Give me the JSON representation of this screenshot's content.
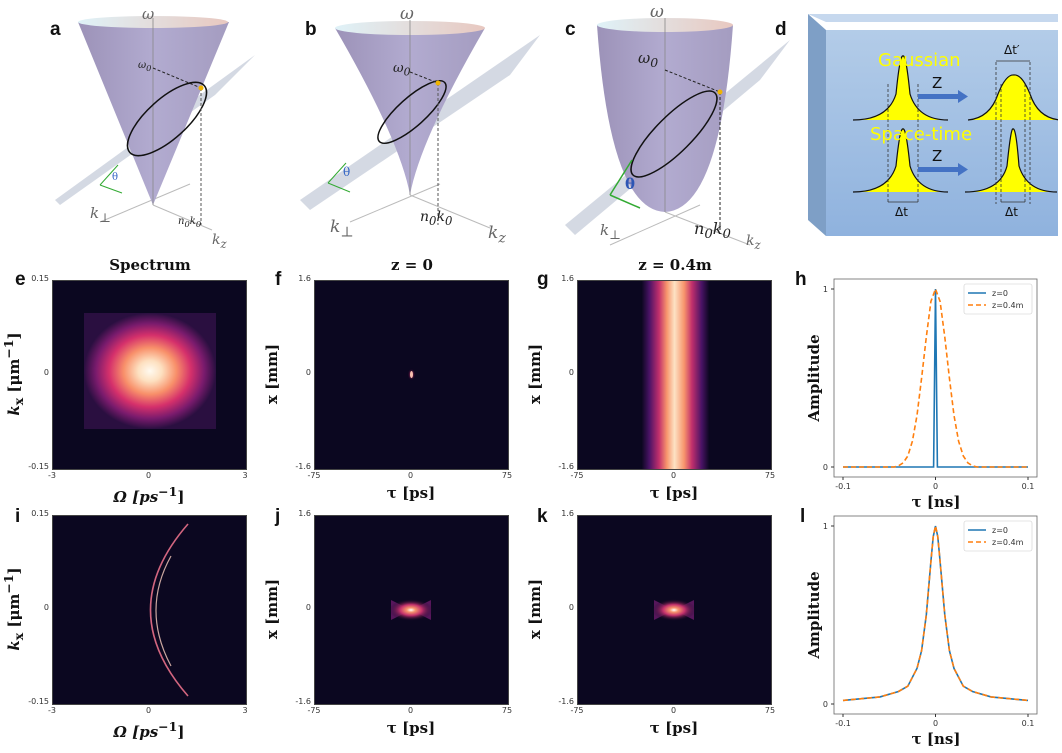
{
  "panel_labels": [
    "a",
    "b",
    "c",
    "d",
    "e",
    "f",
    "g",
    "h",
    "i",
    "j",
    "k",
    "l"
  ],
  "cones": {
    "omega": "ω",
    "omega0": "ω",
    "omega0_sub": "0",
    "theta": "θ",
    "k_perp": "k",
    "k_perp_sub": "⊥",
    "n0k0": "n",
    "n0k0_sub": "0",
    "k0": "k",
    "k0_sub": "0",
    "kz": "k",
    "kz_sub": "z"
  },
  "diagram_d": {
    "gaussian": "Gaussian",
    "space_time": "Space-time",
    "z1": "Z",
    "z2": "Z",
    "dt_prime": "Δt′",
    "dt_left": "Δt",
    "dt_right": "Δt",
    "colors": {
      "box": "#9dbde2",
      "pulse": "#ffff00",
      "arrow": "#4472c4",
      "text": "#ffff00"
    }
  },
  "titles": {
    "e": "Spectrum",
    "f": "z = 0",
    "g": "z = 0.4m"
  },
  "axes": {
    "kx": "k",
    "kx_sub": "x",
    "kx_unit": " [μm",
    "kx_sup": "−1",
    "kx_close": "]",
    "omega": "Ω [ps",
    "omega_sup": "−1",
    "omega_close": "]",
    "x_mm": "x [mm]",
    "tau_ps": "τ [ps]",
    "tau_ns": "τ [ns]",
    "amplitude": "Amplitude",
    "kx_ticks": [
      "0.15",
      "0",
      "-0.15"
    ],
    "omega_ticks": [
      "-3",
      "0",
      "3"
    ],
    "x_ticks": [
      "1.6",
      "0",
      "-1.6"
    ],
    "tau_ps_ticks": [
      "-75",
      "0",
      "75"
    ]
  },
  "heatmap_colormap": [
    "#0b0720",
    "#5a1a6e",
    "#c2306c",
    "#f47a5c",
    "#fde2c4",
    "#ffffff"
  ],
  "chart_data": [
    {
      "panel": "h",
      "type": "line",
      "xlabel": "τ [ns]",
      "ylabel": "Amplitude",
      "xlim": [
        -0.1,
        0.1
      ],
      "ylim": [
        0,
        1
      ],
      "xticks": [
        "-0.1",
        "0",
        "0.1"
      ],
      "yticks": [
        "0",
        "1"
      ],
      "legend": "top-right",
      "grid": false,
      "series": [
        {
          "name": "z=0",
          "color": "#1f77b4",
          "dash": false,
          "x": [
            -0.1,
            -0.002,
            0,
            0.002,
            0.1
          ],
          "y": [
            0,
            0,
            1,
            0,
            0
          ]
        },
        {
          "name": "z=0.4m",
          "color": "#ff7f0e",
          "dash": true,
          "x": [
            -0.1,
            -0.045,
            -0.04,
            -0.035,
            -0.03,
            -0.025,
            -0.02,
            -0.015,
            -0.01,
            -0.005,
            0,
            0.005,
            0.01,
            0.015,
            0.02,
            0.025,
            0.03,
            0.035,
            0.04,
            0.045,
            0.1
          ],
          "y": [
            0,
            0,
            0.007,
            0.023,
            0.062,
            0.145,
            0.29,
            0.5,
            0.73,
            0.93,
            1,
            0.93,
            0.73,
            0.5,
            0.29,
            0.145,
            0.062,
            0.023,
            0.007,
            0,
            0
          ]
        }
      ]
    },
    {
      "panel": "l",
      "type": "line",
      "xlabel": "τ [ns]",
      "ylabel": "Amplitude",
      "xlim": [
        -0.1,
        0.1
      ],
      "ylim": [
        0,
        1
      ],
      "xticks": [
        "-0.1",
        "0",
        "0.1"
      ],
      "yticks": [
        "0",
        "1"
      ],
      "legend": "top-right",
      "grid": false,
      "series": [
        {
          "name": "z=0",
          "color": "#1f77b4",
          "dash": false,
          "x": [
            -0.1,
            -0.08,
            -0.06,
            -0.04,
            -0.03,
            -0.02,
            -0.015,
            -0.01,
            -0.005,
            -0.0025,
            0,
            0.0025,
            0.005,
            0.01,
            0.015,
            0.02,
            0.03,
            0.04,
            0.06,
            0.08,
            0.1
          ],
          "y": [
            0.02,
            0.03,
            0.04,
            0.07,
            0.1,
            0.2,
            0.3,
            0.5,
            0.8,
            0.94,
            1,
            0.94,
            0.8,
            0.5,
            0.3,
            0.2,
            0.1,
            0.07,
            0.04,
            0.03,
            0.02
          ]
        },
        {
          "name": "z=0.4m",
          "color": "#ff7f0e",
          "dash": true,
          "x": [
            -0.1,
            -0.08,
            -0.06,
            -0.04,
            -0.03,
            -0.02,
            -0.015,
            -0.01,
            -0.005,
            -0.0025,
            0,
            0.0025,
            0.005,
            0.01,
            0.015,
            0.02,
            0.03,
            0.04,
            0.06,
            0.08,
            0.1
          ],
          "y": [
            0.02,
            0.03,
            0.04,
            0.07,
            0.1,
            0.2,
            0.3,
            0.5,
            0.8,
            0.94,
            1,
            0.94,
            0.8,
            0.5,
            0.3,
            0.2,
            0.1,
            0.07,
            0.04,
            0.03,
            0.02
          ]
        }
      ]
    }
  ]
}
